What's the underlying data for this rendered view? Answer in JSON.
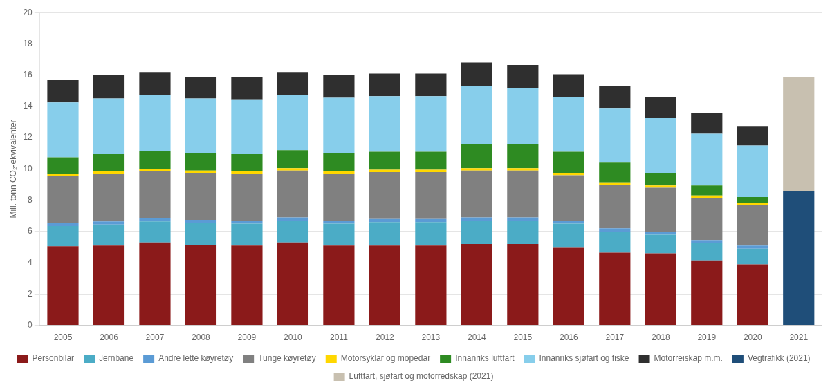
{
  "chart_data": {
    "type": "bar",
    "stacked": true,
    "y_label": "Mill. tonn CO₂-ekvivalenter",
    "categories": [
      "2005",
      "2006",
      "2007",
      "2008",
      "2009",
      "2010",
      "2011",
      "2012",
      "2013",
      "2014",
      "2015",
      "2016",
      "2017",
      "2018",
      "2019",
      "2020",
      "2021"
    ],
    "series": [
      {
        "name": "Personbilar",
        "color": "#8B1A1A",
        "values": [
          5.05,
          5.1,
          5.3,
          5.15,
          5.1,
          5.3,
          5.1,
          5.1,
          5.1,
          5.2,
          5.2,
          5.0,
          4.65,
          4.6,
          4.15,
          3.9,
          null
        ]
      },
      {
        "name": "Jernbane",
        "color": "#4BACC6",
        "values": [
          1.3,
          1.35,
          1.35,
          1.4,
          1.4,
          1.4,
          1.4,
          1.5,
          1.5,
          1.5,
          1.5,
          1.5,
          1.35,
          1.2,
          1.1,
          1.0,
          null
        ]
      },
      {
        "name": "Andre lette køyretøy",
        "color": "#5B9BD5",
        "values": [
          0.2,
          0.2,
          0.2,
          0.2,
          0.2,
          0.2,
          0.2,
          0.2,
          0.2,
          0.2,
          0.2,
          0.2,
          0.2,
          0.2,
          0.2,
          0.2,
          null
        ]
      },
      {
        "name": "Tunge køyretøy",
        "color": "#808080",
        "values": [
          3.0,
          3.05,
          3.0,
          3.0,
          3.0,
          3.0,
          3.0,
          3.0,
          3.0,
          3.0,
          3.0,
          2.9,
          2.8,
          2.8,
          2.7,
          2.6,
          null
        ]
      },
      {
        "name": "Motorsyklar og mopedar",
        "color": "#FFD700",
        "values": [
          0.15,
          0.15,
          0.15,
          0.15,
          0.15,
          0.15,
          0.15,
          0.15,
          0.15,
          0.15,
          0.15,
          0.15,
          0.15,
          0.15,
          0.15,
          0.15,
          null
        ]
      },
      {
        "name": "Innanriks luftfart",
        "color": "#2E8B22",
        "values": [
          1.05,
          1.1,
          1.15,
          1.1,
          1.1,
          1.15,
          1.15,
          1.15,
          1.15,
          1.55,
          1.55,
          1.35,
          1.25,
          0.8,
          0.65,
          0.35,
          null
        ]
      },
      {
        "name": "Innanriks sjøfart og fiske",
        "color": "#87CEEB",
        "values": [
          3.5,
          3.55,
          3.55,
          3.5,
          3.5,
          3.55,
          3.55,
          3.55,
          3.55,
          3.7,
          3.55,
          3.5,
          3.5,
          3.5,
          3.3,
          3.3,
          null
        ]
      },
      {
        "name": "Motorreiskap m.m.",
        "color": "#2F2F2F",
        "values": [
          1.45,
          1.5,
          1.5,
          1.4,
          1.4,
          1.45,
          1.45,
          1.45,
          1.45,
          1.5,
          1.5,
          1.45,
          1.4,
          1.35,
          1.35,
          1.25,
          null
        ]
      },
      {
        "name": "Vegtrafikk (2021)",
        "color": "#1F4E79",
        "values": [
          null,
          null,
          null,
          null,
          null,
          null,
          null,
          null,
          null,
          null,
          null,
          null,
          null,
          null,
          null,
          null,
          8.6
        ]
      },
      {
        "name": "Luftfart, sjøfart og motorredskap (2021)",
        "color": "#C8C0B0",
        "values": [
          null,
          null,
          null,
          null,
          null,
          null,
          null,
          null,
          null,
          null,
          null,
          null,
          null,
          null,
          null,
          null,
          7.3
        ]
      }
    ],
    "ylim": [
      0,
      20
    ],
    "yticks": [
      0,
      2,
      4,
      6,
      8,
      10,
      12,
      14,
      16,
      18,
      20
    ],
    "grid": true,
    "legend": "bottom"
  }
}
